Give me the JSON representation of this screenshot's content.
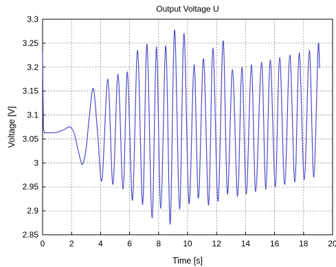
{
  "chart_data": {
    "type": "line",
    "title": "Output Voltage U",
    "xlabel": "Time [s]",
    "ylabel": "Voltage [V]",
    "xlim": [
      0,
      20
    ],
    "ylim": [
      2.85,
      3.3
    ],
    "grid": true,
    "legend": "none",
    "line_color": "#4a4ac8",
    "x_ticks": [
      0,
      2,
      4,
      6,
      8,
      10,
      12,
      14,
      16,
      18,
      20
    ],
    "x_tick_labels": [
      "0",
      "2",
      "4",
      "6",
      "8",
      "10",
      "12",
      "14",
      "16",
      "18",
      "20"
    ],
    "y_ticks": [
      2.85,
      2.9,
      2.95,
      3.0,
      3.05,
      3.1,
      3.15,
      3.2,
      3.25,
      3.3
    ],
    "y_tick_labels": [
      "2.85",
      "2.9",
      "2.95",
      "3",
      "3.05",
      "3.1",
      "3.15",
      "3.2",
      "3.25",
      "3.3"
    ],
    "series": [
      {
        "x": [
          0,
          0.05,
          0.1,
          0.2,
          0.5,
          1.0,
          1.5,
          1.9,
          2.2,
          2.5,
          2.75,
          3.0,
          3.2,
          3.5,
          3.8,
          4.1,
          4.5,
          4.85,
          5.2,
          5.55,
          5.85,
          6.2,
          6.55,
          6.9,
          7.2,
          7.55,
          7.85,
          8.15,
          8.5,
          8.8,
          9.1,
          9.45,
          9.75,
          10.1,
          10.45,
          10.75,
          11.1,
          11.45,
          11.75,
          12.1,
          12.45,
          12.75,
          13.1,
          13.45,
          13.75,
          14.05,
          14.4,
          14.7,
          15.1,
          15.4,
          15.7,
          16.05,
          16.35,
          16.7,
          17.05,
          17.4,
          17.7,
          18.05,
          18.4,
          18.7,
          19.0,
          19.1
        ],
        "y": [
          3.23,
          3.09,
          3.065,
          3.063,
          3.063,
          3.064,
          3.07,
          3.075,
          3.06,
          3.02,
          2.997,
          3.03,
          3.09,
          3.155,
          3.06,
          2.965,
          3.175,
          2.955,
          3.185,
          2.945,
          3.19,
          2.922,
          3.235,
          2.913,
          3.248,
          2.885,
          3.242,
          2.905,
          3.245,
          2.872,
          3.278,
          2.904,
          3.27,
          2.915,
          3.205,
          2.926,
          3.218,
          2.912,
          3.24,
          2.92,
          3.255,
          2.935,
          3.195,
          2.93,
          3.2,
          2.935,
          3.205,
          2.94,
          3.21,
          2.945,
          3.215,
          2.95,
          3.22,
          2.955,
          3.225,
          2.96,
          3.23,
          2.965,
          3.235,
          2.97,
          3.24,
          3.198
        ]
      }
    ]
  }
}
